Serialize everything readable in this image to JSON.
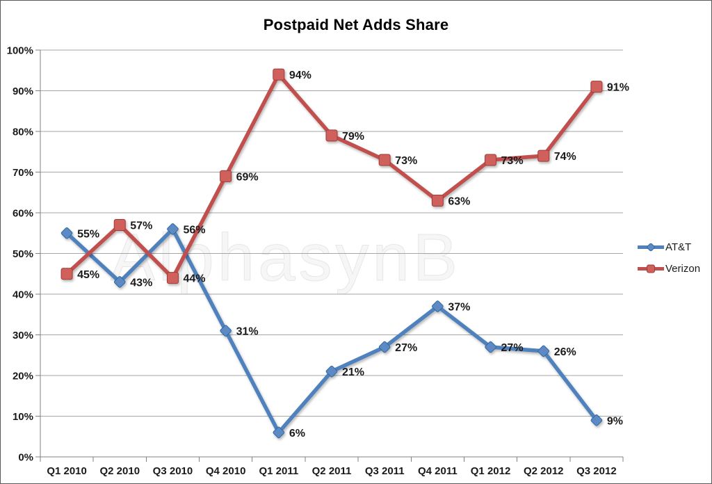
{
  "chart_data": {
    "type": "line",
    "title": "Postpaid Net Adds Share",
    "categories": [
      "Q1 2010",
      "Q2 2010",
      "Q3 2010",
      "Q4 2010",
      "Q1 2011",
      "Q2 2011",
      "Q3 2011",
      "Q4 2011",
      "Q1 2012",
      "Q2 2012",
      "Q3 2012"
    ],
    "series": [
      {
        "name": "AT&T",
        "marker": "diamond",
        "color": "#4F81BD",
        "marker_fill": "#5D8AC4",
        "marker_stroke": "#31699E",
        "values": [
          55,
          43,
          56,
          31,
          6,
          21,
          27,
          37,
          27,
          26,
          9
        ]
      },
      {
        "name": "Verizon",
        "marker": "square",
        "color": "#C0504D",
        "marker_fill": "#D0605B",
        "marker_stroke": "#9E3B38",
        "values": [
          45,
          57,
          44,
          69,
          94,
          79,
          73,
          63,
          73,
          74,
          91
        ]
      }
    ],
    "xlabel": "",
    "ylabel": "",
    "ylim": [
      0,
      100
    ],
    "ytick_step": 10,
    "y_tick_labels": [
      "0%",
      "10%",
      "20%",
      "30%",
      "40%",
      "50%",
      "60%",
      "70%",
      "80%",
      "90%",
      "100%"
    ],
    "data_label_suffix": "%",
    "grid": true,
    "legend_position": "right"
  },
  "watermark": "AlphasynB",
  "colors": {
    "gridline": "#A6A6A6",
    "axis": "#808080",
    "tick_text": "#1A1A1A",
    "data_label_text": "#1A1A1A",
    "watermark_fill": "#F6F6F6",
    "watermark_stroke": "#E7E7E7",
    "background": "#FFFFFF",
    "border": "#595959"
  }
}
